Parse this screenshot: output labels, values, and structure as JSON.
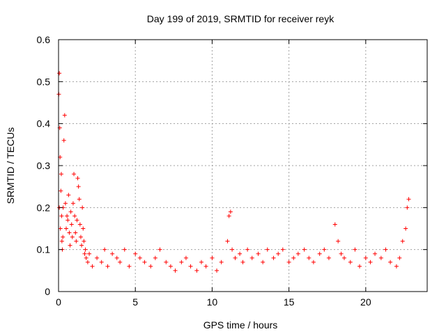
{
  "chart_data": {
    "type": "scatter",
    "title": "Day 199 of 2019, SRMTID for receiver reyk",
    "xlabel": "GPS time / hours",
    "ylabel": "SRMTID / TECUs",
    "xlim": [
      0,
      24
    ],
    "ylim": [
      0,
      0.6
    ],
    "xticks": [
      0,
      5,
      10,
      15,
      20
    ],
    "xtick_labels": [
      "0",
      "5",
      "10",
      "15",
      "20"
    ],
    "yticks": [
      0,
      0.1,
      0.2,
      0.3,
      0.4,
      0.5,
      0.6
    ],
    "ytick_labels": [
      "0",
      "0.1",
      "0.2",
      "0.3",
      "0.4",
      "0.5",
      "0.6"
    ],
    "grid": true,
    "marker": "+",
    "color": "#ff0000",
    "series": [
      {
        "name": "SRMTID",
        "x": [
          0.02,
          0.05,
          0.05,
          0.08,
          0.1,
          0.12,
          0.15,
          0.18,
          0.2,
          0.22,
          0.25,
          0.28,
          0.3,
          0.35,
          0.4,
          0.45,
          0.5,
          0.55,
          0.6,
          0.65,
          0.7,
          0.75,
          0.8,
          0.85,
          0.9,
          0.95,
          1.0,
          1.05,
          1.1,
          1.15,
          1.2,
          1.25,
          1.3,
          1.35,
          1.4,
          1.45,
          1.5,
          1.55,
          1.6,
          1.65,
          1.7,
          1.75,
          1.8,
          1.9,
          2.0,
          2.2,
          2.5,
          2.8,
          3.0,
          3.2,
          3.5,
          3.8,
          4.0,
          4.3,
          4.6,
          5.0,
          5.3,
          5.6,
          6.0,
          6.3,
          6.6,
          7.0,
          7.3,
          7.6,
          8.0,
          8.3,
          8.6,
          9.0,
          9.3,
          9.6,
          10.0,
          10.3,
          10.6,
          11.0,
          11.1,
          11.2,
          11.3,
          11.5,
          11.8,
          12.0,
          12.3,
          12.6,
          13.0,
          13.3,
          13.6,
          14.0,
          14.3,
          14.6,
          15.0,
          15.3,
          15.6,
          16.0,
          16.3,
          16.6,
          17.0,
          17.3,
          17.6,
          18.0,
          18.2,
          18.4,
          18.6,
          19.0,
          19.3,
          19.6,
          20.0,
          20.3,
          20.6,
          21.0,
          21.3,
          21.6,
          22.0,
          22.2,
          22.4,
          22.6,
          22.7,
          22.8
        ],
        "y": [
          0.47,
          0.52,
          0.2,
          0.39,
          0.32,
          0.15,
          0.24,
          0.28,
          0.18,
          0.12,
          0.1,
          0.13,
          0.2,
          0.36,
          0.42,
          0.21,
          0.15,
          0.18,
          0.17,
          0.23,
          0.14,
          0.11,
          0.19,
          0.16,
          0.13,
          0.21,
          0.28,
          0.18,
          0.14,
          0.12,
          0.17,
          0.27,
          0.25,
          0.22,
          0.16,
          0.13,
          0.11,
          0.2,
          0.15,
          0.12,
          0.09,
          0.1,
          0.08,
          0.07,
          0.09,
          0.06,
          0.08,
          0.07,
          0.1,
          0.06,
          0.09,
          0.08,
          0.07,
          0.1,
          0.06,
          0.09,
          0.08,
          0.07,
          0.06,
          0.08,
          0.1,
          0.07,
          0.06,
          0.05,
          0.07,
          0.08,
          0.06,
          0.05,
          0.07,
          0.06,
          0.08,
          0.05,
          0.07,
          0.12,
          0.18,
          0.19,
          0.1,
          0.08,
          0.09,
          0.07,
          0.1,
          0.08,
          0.09,
          0.07,
          0.1,
          0.08,
          0.09,
          0.1,
          0.07,
          0.08,
          0.09,
          0.1,
          0.08,
          0.07,
          0.09,
          0.1,
          0.08,
          0.16,
          0.12,
          0.09,
          0.08,
          0.07,
          0.1,
          0.06,
          0.08,
          0.07,
          0.09,
          0.08,
          0.1,
          0.07,
          0.06,
          0.08,
          0.12,
          0.15,
          0.2,
          0.22
        ]
      }
    ]
  }
}
